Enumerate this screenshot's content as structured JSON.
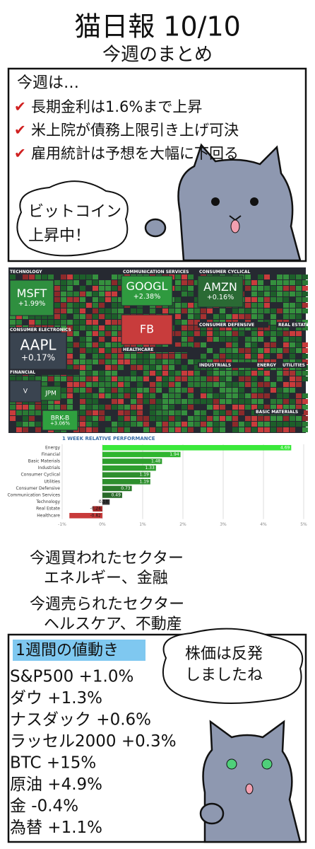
{
  "header": {
    "title": "猫日報 10/10",
    "subtitle": "今週のまとめ"
  },
  "summary": {
    "heading": "今週は…",
    "items": [
      "長期金利は1.6%まで上昇",
      "米上院が債務上限引き上げ可決",
      "雇用統計は予想を大幅に下回る"
    ],
    "bubble": [
      "ビットコイン",
      "上昇中！"
    ]
  },
  "treemap": {
    "sectors": [
      "TECHNOLOGY",
      "COMMUNICATION SERVICES",
      "CONSUMER CYCLICAL",
      "CONSUMER ELECTRONICS",
      "HEALTHCARE",
      "CONSUMER DEFENSIVE",
      "REAL ESTATE",
      "INDUSTRIALS",
      "ENERGY",
      "UTILITIES",
      "FINANCIAL",
      "BASIC MATERIALS"
    ],
    "tiles": [
      {
        "ticker": "MSFT",
        "change": "+1.99%"
      },
      {
        "ticker": "AAPL",
        "change": "+0.17%"
      },
      {
        "ticker": "GOOGL",
        "change": "+2.38%"
      },
      {
        "ticker": "FB"
      },
      {
        "ticker": "AMZN",
        "change": "+0.16%"
      },
      {
        "ticker": "BRK-B",
        "change": "+3.06%"
      },
      {
        "ticker": "V"
      },
      {
        "ticker": "JPM"
      }
    ]
  },
  "chart_data": {
    "type": "bar",
    "title": "1 WEEK RELATIVE PERFORMANCE",
    "categories": [
      "Energy",
      "Financial",
      "Basic Materials",
      "Industrials",
      "Consumer Cyclical",
      "Utilities",
      "Consumer Defensive",
      "Communication Services",
      "Technology",
      "Real Estate",
      "Healthcare"
    ],
    "values": [
      4.69,
      1.94,
      1.48,
      1.33,
      1.19,
      1.19,
      0.73,
      0.49,
      0.18,
      -0.24,
      -0.82
    ],
    "colors": [
      "#3be83b",
      "#2fb52f",
      "#2e9e2e",
      "#2e9e2e",
      "#2e8f2e",
      "#2e8f2e",
      "#2a7a2a",
      "#2a6a2a",
      "#333333",
      "#a52a2a",
      "#c83a3a"
    ],
    "xlim": [
      -1,
      5
    ],
    "xticks": [
      {
        "value": -1,
        "label": "-1%"
      },
      {
        "value": 0,
        "label": "0%"
      },
      {
        "value": 1,
        "label": "1%"
      },
      {
        "value": 2,
        "label": "2%"
      },
      {
        "value": 3,
        "label": "3%"
      },
      {
        "value": 4,
        "label": "4%"
      },
      {
        "value": 5,
        "label": "5%"
      }
    ],
    "grid": true
  },
  "sectors_text": {
    "bought_heading": "今週買われたセクター",
    "bought": "エネルギー、金融",
    "sold_heading": "今週売られたセクター",
    "sold": "ヘルスケア、不動産"
  },
  "weekly": {
    "heading": "1週間の値動き",
    "items": [
      "S&P500 +1.0%",
      "ダウ +1.3%",
      "ナスダック +0.6%",
      "ラッセル2000 +0.3%",
      "BTC +15%",
      "原油 +4.9%",
      "金 -0.4%",
      "為替 +1.1%"
    ],
    "bubble": [
      "株価は反発",
      "しましたね"
    ]
  }
}
